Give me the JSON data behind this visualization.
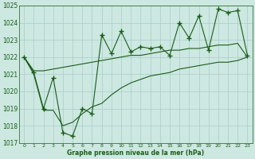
{
  "xlabel": "Graphe pression niveau de la mer (hPa)",
  "x": [
    0,
    1,
    2,
    3,
    4,
    5,
    6,
    7,
    8,
    9,
    10,
    11,
    12,
    13,
    14,
    15,
    16,
    17,
    18,
    19,
    20,
    21,
    22,
    23
  ],
  "main_line": [
    1022.0,
    1021.1,
    1019.0,
    1020.8,
    1017.6,
    1017.4,
    1019.0,
    1018.7,
    1023.3,
    1022.2,
    1023.5,
    1022.3,
    1022.6,
    1022.5,
    1022.6,
    1022.1,
    1024.0,
    1023.1,
    1024.4,
    1022.4,
    1024.8,
    1024.6,
    1024.7,
    1022.1
  ],
  "upper_line": [
    1022.0,
    1021.2,
    1021.2,
    1021.3,
    1021.4,
    1021.5,
    1021.6,
    1021.7,
    1021.8,
    1021.9,
    1022.0,
    1022.1,
    1022.1,
    1022.2,
    1022.3,
    1022.4,
    1022.4,
    1022.5,
    1022.5,
    1022.6,
    1022.7,
    1022.7,
    1022.8,
    1022.0
  ],
  "lower_line": [
    1022.0,
    1021.0,
    1018.9,
    1018.9,
    1018.0,
    1018.2,
    1018.7,
    1019.1,
    1019.3,
    1019.8,
    1020.2,
    1020.5,
    1020.7,
    1020.9,
    1021.0,
    1021.1,
    1021.3,
    1021.4,
    1021.5,
    1021.6,
    1021.7,
    1021.7,
    1021.8,
    1022.0
  ],
  "ylim": [
    1017,
    1025
  ],
  "yticks": [
    1017,
    1018,
    1019,
    1020,
    1021,
    1022,
    1023,
    1024,
    1025
  ],
  "bg_color": "#cce8e0",
  "grid_color": "#aacccc",
  "line_color": "#1a5c1a",
  "marker": "+",
  "markersize": 4,
  "linewidth": 0.8,
  "figwidth": 3.2,
  "figheight": 2.0,
  "dpi": 100
}
